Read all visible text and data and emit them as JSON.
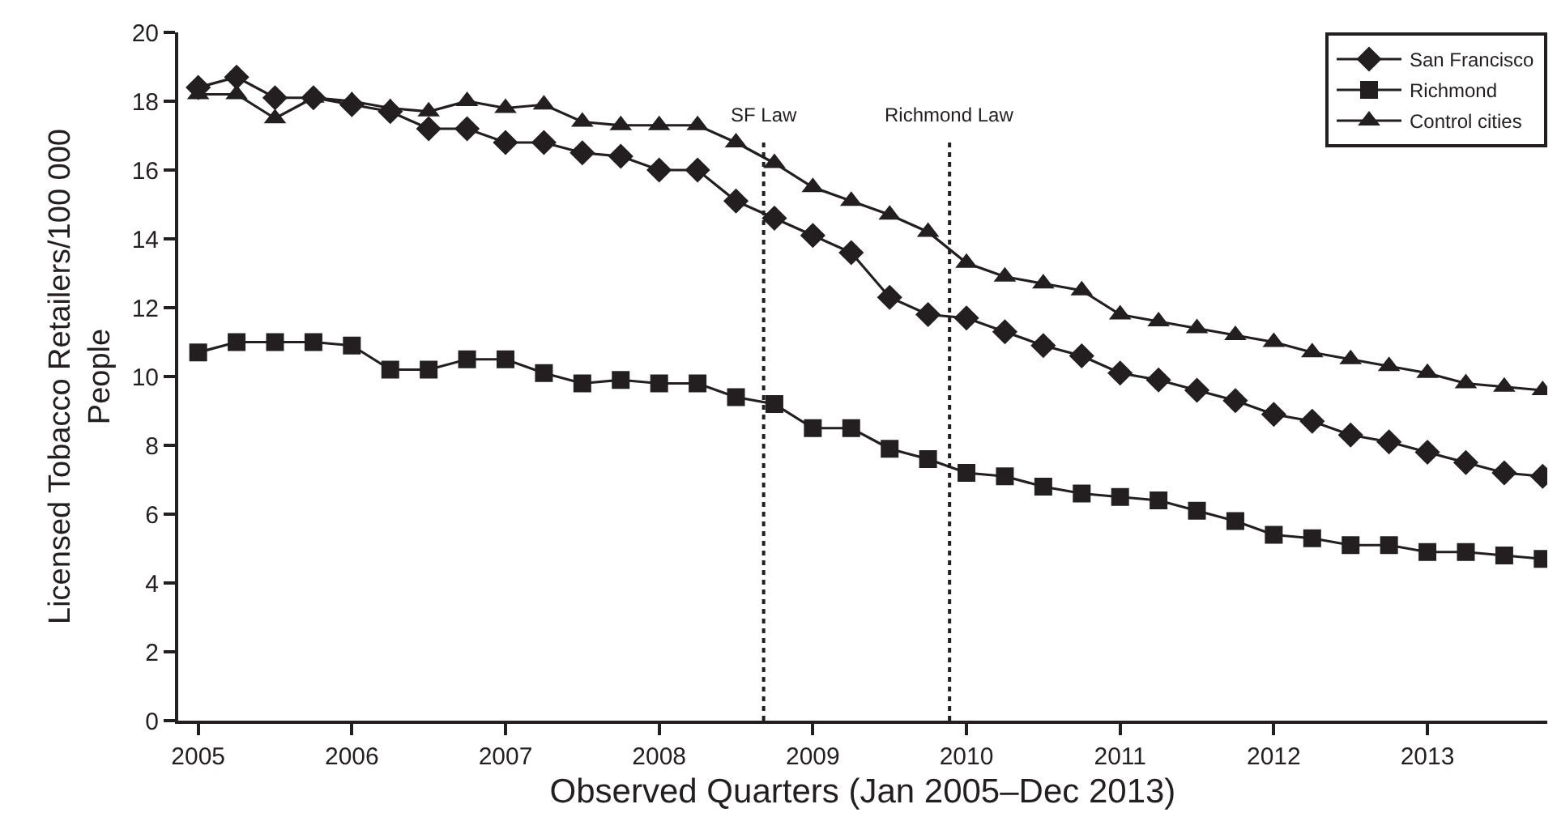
{
  "chart_data": {
    "type": "line",
    "xlabel": "Observed Quarters (Jan 2005–Dec 2013)",
    "ylabel": "Licensed Tobacco Retailers/100 000\nPeople",
    "x": [
      2005,
      2005.25,
      2005.5,
      2005.75,
      2006,
      2006.25,
      2006.5,
      2006.75,
      2007,
      2007.25,
      2007.5,
      2007.75,
      2008,
      2008.25,
      2008.5,
      2008.75,
      2009,
      2009.25,
      2009.5,
      2009.75,
      2010,
      2010.25,
      2010.5,
      2010.75,
      2011,
      2011.25,
      2011.5,
      2011.75,
      2012,
      2012.25,
      2012.5,
      2012.75,
      2013,
      2013.25,
      2013.5,
      2013.75
    ],
    "series": [
      {
        "name": "San Francisco",
        "color": "#231f20",
        "marker": "diamond",
        "values": [
          18.4,
          18.7,
          18.1,
          18.1,
          17.9,
          17.7,
          17.2,
          17.2,
          16.8,
          16.8,
          16.5,
          16.4,
          16.0,
          16.0,
          15.1,
          14.6,
          14.1,
          13.6,
          12.3,
          11.8,
          11.7,
          11.3,
          10.9,
          10.6,
          10.1,
          9.9,
          9.6,
          9.3,
          8.9,
          8.7,
          8.3,
          8.1,
          7.8,
          7.5,
          7.2,
          7.1
        ]
      },
      {
        "name": "Richmond",
        "color": "#231f20",
        "marker": "square",
        "values": [
          10.7,
          11.0,
          11.0,
          11.0,
          10.9,
          10.2,
          10.2,
          10.5,
          10.5,
          10.1,
          9.8,
          9.9,
          9.8,
          9.8,
          9.4,
          9.2,
          8.5,
          8.5,
          7.9,
          7.6,
          7.2,
          7.1,
          6.8,
          6.6,
          6.5,
          6.4,
          6.1,
          5.8,
          5.4,
          5.3,
          5.1,
          5.1,
          4.9,
          4.9,
          4.8,
          4.7
        ]
      },
      {
        "name": "Control cities",
        "color": "#231f20",
        "marker": "triangle",
        "values": [
          18.2,
          18.2,
          17.5,
          18.1,
          18.0,
          17.8,
          17.7,
          18.0,
          17.8,
          17.9,
          17.4,
          17.3,
          17.3,
          17.3,
          16.8,
          16.2,
          15.5,
          15.1,
          14.7,
          14.2,
          13.3,
          12.9,
          12.7,
          12.5,
          11.8,
          11.6,
          11.4,
          11.2,
          11.0,
          10.7,
          10.5,
          10.3,
          10.1,
          9.8,
          9.7,
          9.6
        ]
      }
    ],
    "xlim": [
      2004.87,
      2013.78
    ],
    "xticks": [
      2005,
      2006,
      2007,
      2008,
      2009,
      2010,
      2011,
      2012,
      2013
    ],
    "ylim": [
      0,
      20
    ],
    "yticks": [
      0,
      2,
      4,
      6,
      8,
      10,
      12,
      14,
      16,
      18,
      20
    ],
    "ref_lines": [
      {
        "axis": "x",
        "value": 2008.68,
        "label": "SF Law",
        "color": "#231f20",
        "line_style": "dotted"
      },
      {
        "axis": "x",
        "value": 2009.89,
        "label": "Richmond Law",
        "color": "#231f20",
        "line_style": "dotted"
      }
    ],
    "legend": "top right",
    "line_style": "solid"
  }
}
